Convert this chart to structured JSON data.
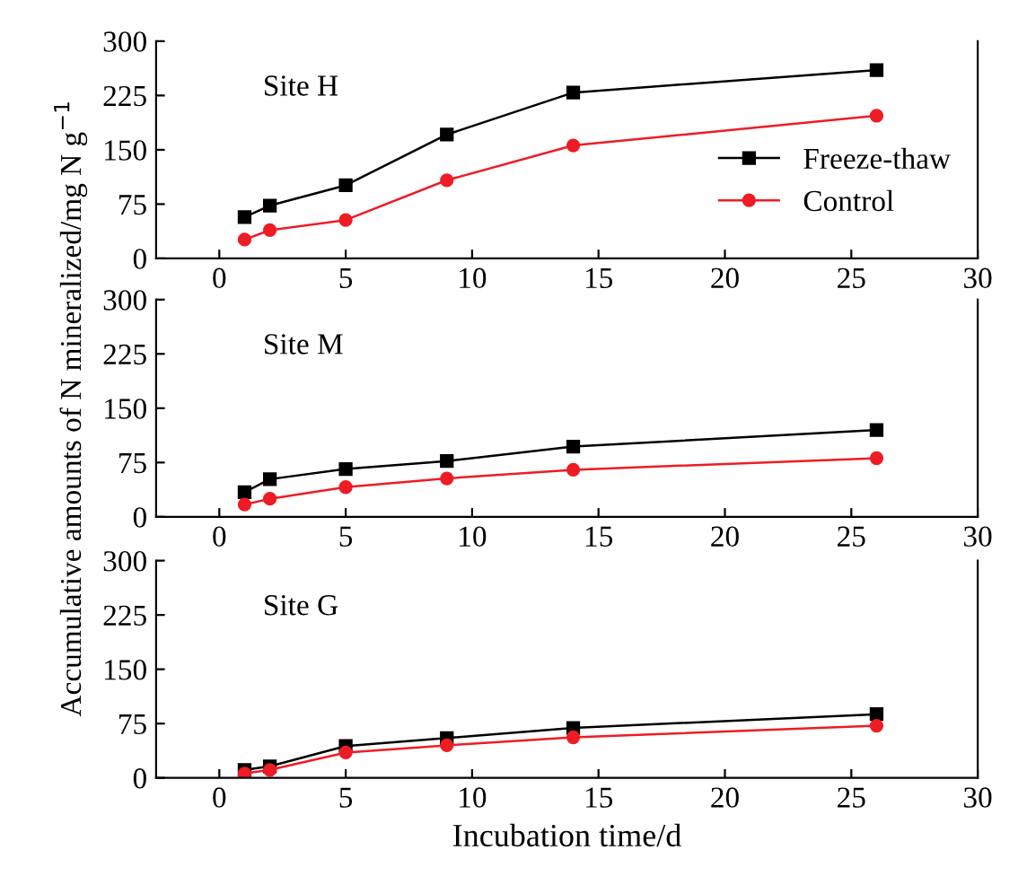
{
  "chart_data": [
    {
      "type": "line",
      "annotations": [
        "Site H"
      ],
      "x": [
        1,
        2,
        5,
        9,
        14,
        26
      ],
      "series": [
        {
          "name": "Freeze-thaw",
          "color": "#000000",
          "marker": "square",
          "values": [
            57,
            73,
            101,
            171,
            229,
            260
          ]
        },
        {
          "name": "Control",
          "color": "#ee1c25",
          "marker": "circle",
          "values": [
            26,
            39,
            53,
            108,
            156,
            197
          ]
        }
      ],
      "xlim": [
        -2.5,
        30
      ],
      "xticks": [
        0,
        5,
        10,
        15,
        20,
        25,
        30
      ],
      "ylim": [
        0,
        300
      ],
      "yticks": [
        0,
        75,
        150,
        225,
        300
      ],
      "grid": false,
      "legend": "right"
    },
    {
      "type": "line",
      "ylabel": "Accumulative amounts of N mineralized/mg N g$^{−1}$",
      "annotations": [
        "Site M"
      ],
      "x": [
        1,
        2,
        5,
        9,
        14,
        26
      ],
      "series": [
        {
          "color": "#000000",
          "marker": "square",
          "values": [
            34,
            52,
            66,
            77,
            97,
            120
          ]
        },
        {
          "color": "#ee1c25",
          "marker": "circle",
          "values": [
            17,
            25,
            41,
            53,
            65,
            81
          ]
        }
      ],
      "xlim": [
        -2.5,
        30
      ],
      "xticks": [
        0,
        5,
        10,
        15,
        20,
        25,
        30
      ],
      "ylim": [
        0,
        300
      ],
      "yticks": [
        0,
        75,
        150,
        225,
        300
      ],
      "grid": false,
      "legend": false
    },
    {
      "type": "line",
      "xlabel": "Incubation time/d",
      "annotations": [
        "Site G"
      ],
      "x": [
        1,
        2,
        5,
        9,
        14,
        26
      ],
      "series": [
        {
          "color": "#000000",
          "marker": "square",
          "values": [
            11,
            16,
            44,
            55,
            69,
            88
          ]
        },
        {
          "color": "#ee1c25",
          "marker": "circle",
          "values": [
            6,
            11,
            35,
            45,
            56,
            72
          ]
        }
      ],
      "xlim": [
        -2.5,
        30
      ],
      "xticks": [
        0,
        5,
        10,
        15,
        20,
        25,
        30
      ],
      "ylim": [
        0,
        300
      ],
      "yticks": [
        0,
        75,
        150,
        225,
        300
      ],
      "grid": false,
      "legend": false
    }
  ]
}
